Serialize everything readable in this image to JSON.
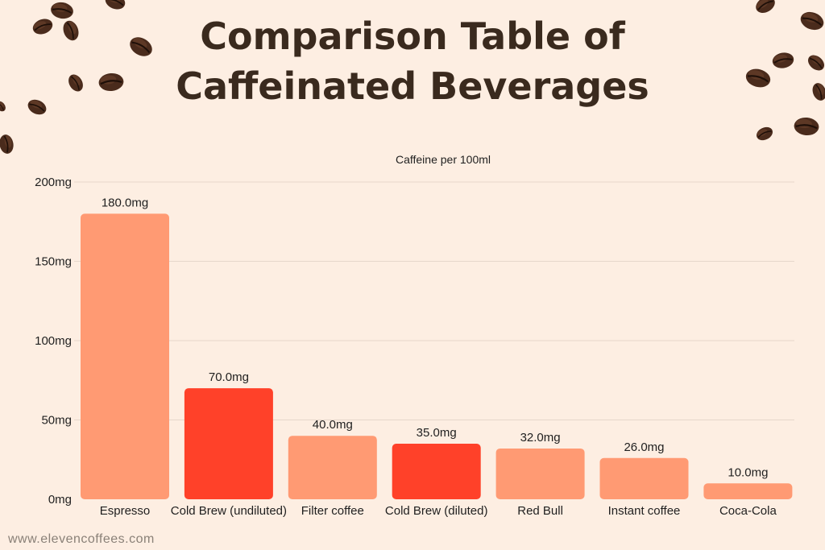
{
  "header": {
    "title_line1": "Comparison Table of",
    "title_line2": "Caffeinated Beverages"
  },
  "footer": {
    "website": "www.elevencoffees.com"
  },
  "colors": {
    "background": "#fdeee2",
    "bar_light": "#ff9a73",
    "bar_dark": "#ff4129",
    "title": "#3a2a1e",
    "grid": "#e6d7cb",
    "text": "#1f1f1f"
  },
  "chart_data": {
    "type": "bar",
    "title": "Caffeine per 100ml",
    "categories": [
      "Espresso",
      "Cold Brew (undiluted)",
      "Filter coffee",
      "Cold Brew (diluted)",
      "Red Bull",
      "Instant coffee",
      "Coca-Cola"
    ],
    "values": [
      180,
      70,
      40,
      35,
      32,
      26,
      10
    ],
    "value_labels": [
      "180.0mg",
      "70.0mg",
      "40.0mg",
      "35.0mg",
      "32.0mg",
      "26.0mg",
      "10.0mg"
    ],
    "bar_colors": [
      "#ff9a73",
      "#ff4129",
      "#ff9a73",
      "#ff4129",
      "#ff9a73",
      "#ff9a73",
      "#ff9a73"
    ],
    "ylim": [
      0,
      200
    ],
    "y_ticks": [
      0,
      50,
      100,
      150,
      200
    ],
    "y_tick_labels": [
      "0mg",
      "50mg",
      "100mg",
      "150mg",
      "200mg"
    ],
    "grid": true,
    "legend": "none"
  }
}
